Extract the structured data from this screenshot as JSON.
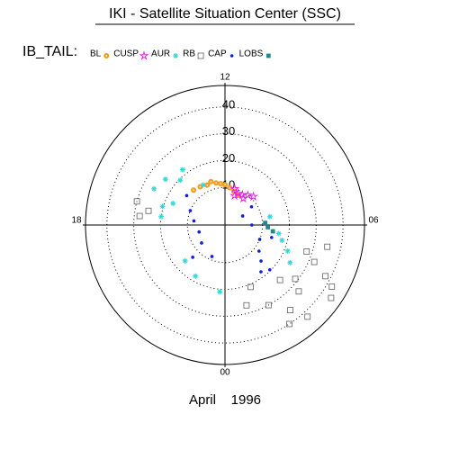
{
  "chart_data": {
    "type": "polar-scatter",
    "title": "IKI - Satellite Situation Center (SSC)",
    "legend_title": "IB_TAIL:",
    "date": "April    1996",
    "ylim": [
      -4,
      48
    ],
    "yticks": [
      10,
      20,
      30,
      40
    ],
    "angle_ticks": [
      12,
      18,
      {
        "value": 6,
        "label": "06"
      },
      {
        "value": 0,
        "label": "00"
      }
    ],
    "grid": true,
    "series": [
      {
        "name": "BL",
        "color": "#f0a020",
        "marker": "sun",
        "x": [
          13.6,
          13.2,
          12.8,
          12.4,
          11.5,
          11,
          10.5,
          14.2,
          14.8,
          12
        ],
        "values": [
          12.3,
          13,
          12,
          11.5,
          10,
          9,
          8,
          13,
          13.5,
          11
        ]
      },
      {
        "name": "CUSP",
        "color": "#e020e0",
        "marker": "star",
        "x": [
          10.5,
          10,
          9.5,
          9,
          10.8,
          9.7,
          11
        ],
        "values": [
          8.7,
          9,
          10,
          11,
          7.5,
          8,
          10
        ]
      },
      {
        "name": "AUR",
        "color": "#30d8d8",
        "marker": "asterisk",
        "x": [
          16.2,
          15,
          16.9,
          15.5,
          14.5,
          16.5,
          17.5,
          20.8,
          22,
          23.7,
          13.9,
          5.4,
          4.5,
          6.7,
          5,
          4
        ],
        "values": [
          25.7,
          19.6,
          20.3,
          24,
          22,
          17,
          20,
          16,
          18,
          21,
          13,
          16.3,
          21.3,
          13,
          18,
          24
        ]
      },
      {
        "name": "RB",
        "color": "#606060",
        "marker": "square",
        "x": [
          3.5,
          1.9,
          4.5,
          1.5,
          3.7,
          2.5,
          3,
          4.2,
          1,
          2.2,
          4.8,
          5.2,
          17.3,
          17.6,
          17,
          4,
          3.2,
          2.8
        ],
        "values": [
          29,
          30,
          32,
          21,
          44,
          36,
          25,
          38,
          27,
          40,
          28,
          35,
          25,
          28,
          30,
          42,
          33,
          42
        ]
      },
      {
        "name": "CAP",
        "color": "#1020d0",
        "marker": "dot",
        "x": [
          17.5,
          16.5,
          15.5,
          19,
          20.5,
          22.5,
          21,
          3,
          3.5,
          7.8,
          3,
          8.3,
          6,
          4.5,
          2.5,
          5
        ],
        "values": [
          7.7,
          10,
          14,
          6,
          7,
          8.7,
          13,
          15,
          12,
          3.4,
          19.6,
          8,
          6,
          10,
          18,
          14
        ]
      },
      {
        "name": "LOBS",
        "color": "#208890",
        "marker": "fill-square",
        "x": [
          5.5,
          5.8,
          6.2
        ],
        "values": [
          14,
          12,
          11
        ]
      }
    ]
  }
}
